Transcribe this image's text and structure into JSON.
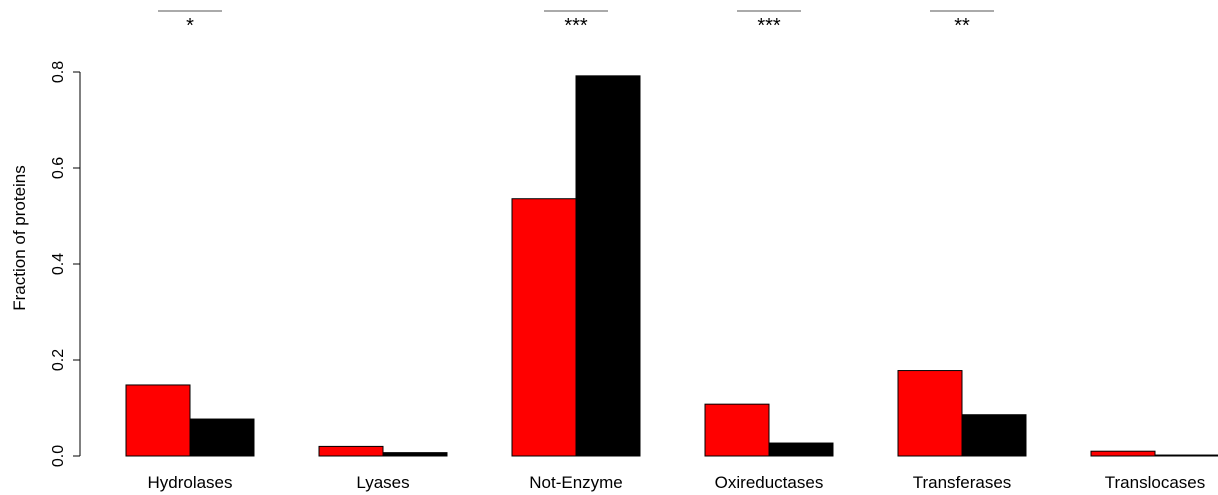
{
  "chart_data": {
    "type": "bar",
    "title": "",
    "xlabel": "",
    "ylabel": "Fraction of proteins",
    "ylim": [
      0,
      0.8
    ],
    "yticks": [
      "0.0",
      "0.2",
      "0.4",
      "0.6",
      "0.8"
    ],
    "grid": false,
    "legend": null,
    "categories": [
      "Hydrolases",
      "Lyases",
      "Not-Enzyme",
      "Oxireductases",
      "Transferases",
      "Translocases"
    ],
    "series": [
      {
        "color": "#ff0000",
        "values": [
          0.148,
          0.02,
          0.536,
          0.108,
          0.178,
          0.01
        ]
      },
      {
        "color": "#000000",
        "values": [
          0.077,
          0.007,
          0.792,
          0.027,
          0.086,
          0.002
        ]
      }
    ],
    "significance": [
      "*",
      "",
      "***",
      "***",
      "**",
      ""
    ]
  }
}
